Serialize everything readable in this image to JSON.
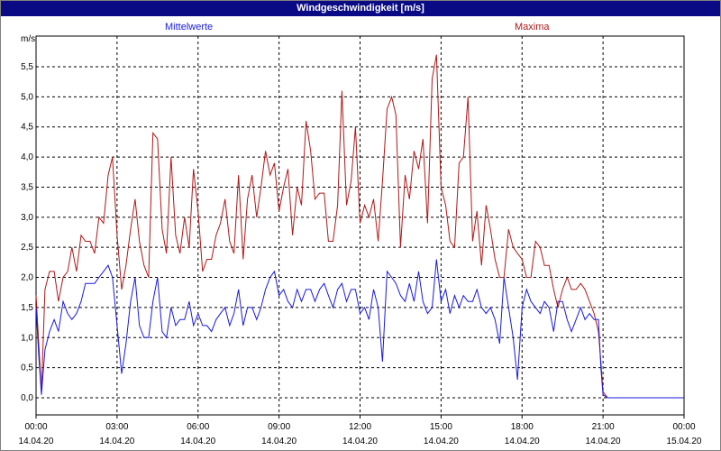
{
  "title": "Windgeschwindigkeit [m/s]",
  "legend": {
    "avg": "Mittelwerte",
    "max": "Maxima"
  },
  "colors": {
    "titlebar": "#0a0a84",
    "avg": "#1a1adf",
    "max": "#b01818",
    "grid": "#000000"
  },
  "chart_data": {
    "type": "line",
    "ylabel": "m/s",
    "ylim": [
      0,
      6
    ],
    "grid": true,
    "legend_placement": "top",
    "y_ticks": [
      "0,0",
      "0,5",
      "1,0",
      "1,5",
      "2,0",
      "2,5",
      "3,0",
      "3,5",
      "4,0",
      "4,5",
      "5,0",
      "5,5"
    ],
    "x_ticks": [
      {
        "time": "00:00",
        "date": "14.04.20"
      },
      {
        "time": "03:00",
        "date": "14.04.20"
      },
      {
        "time": "06:00",
        "date": "14.04.20"
      },
      {
        "time": "09:00",
        "date": "14.04.20"
      },
      {
        "time": "12:00",
        "date": "14.04.20"
      },
      {
        "time": "15:00",
        "date": "14.04.20"
      },
      {
        "time": "18:00",
        "date": "14.04.20"
      },
      {
        "time": "21:00",
        "date": "14.04.20"
      },
      {
        "time": "00:00",
        "date": "15.04.20"
      }
    ],
    "x_unit": "hours since 14.04.20 00:00",
    "xlim": [
      0,
      24
    ],
    "series": [
      {
        "name": "Maxima",
        "color": "#b01818",
        "points": [
          [
            0,
            1.7
          ],
          [
            0.1,
            0.9
          ],
          [
            0.2,
            0.1
          ],
          [
            0.33,
            1.8
          ],
          [
            0.5,
            2.1
          ],
          [
            0.67,
            2.1
          ],
          [
            0.83,
            1.6
          ],
          [
            1.0,
            2.0
          ],
          [
            1.17,
            2.1
          ],
          [
            1.33,
            2.5
          ],
          [
            1.5,
            2.1
          ],
          [
            1.67,
            2.7
          ],
          [
            1.83,
            2.6
          ],
          [
            2.0,
            2.6
          ],
          [
            2.17,
            2.4
          ],
          [
            2.33,
            3.0
          ],
          [
            2.5,
            2.9
          ],
          [
            2.67,
            3.7
          ],
          [
            2.83,
            4.0
          ],
          [
            3.0,
            2.7
          ],
          [
            3.17,
            1.8
          ],
          [
            3.33,
            2.2
          ],
          [
            3.5,
            2.8
          ],
          [
            3.67,
            3.3
          ],
          [
            3.83,
            2.6
          ],
          [
            4.0,
            2.2
          ],
          [
            4.17,
            2.0
          ],
          [
            4.33,
            4.4
          ],
          [
            4.5,
            4.3
          ],
          [
            4.67,
            2.8
          ],
          [
            4.83,
            2.4
          ],
          [
            5.0,
            4.0
          ],
          [
            5.17,
            2.7
          ],
          [
            5.33,
            2.4
          ],
          [
            5.5,
            3.0
          ],
          [
            5.67,
            2.5
          ],
          [
            5.83,
            3.8
          ],
          [
            6.0,
            3.1
          ],
          [
            6.17,
            2.1
          ],
          [
            6.33,
            2.3
          ],
          [
            6.5,
            2.3
          ],
          [
            6.67,
            2.7
          ],
          [
            6.83,
            2.9
          ],
          [
            7.0,
            3.3
          ],
          [
            7.17,
            2.6
          ],
          [
            7.33,
            2.4
          ],
          [
            7.5,
            3.7
          ],
          [
            7.67,
            2.3
          ],
          [
            7.83,
            3.3
          ],
          [
            8.0,
            3.7
          ],
          [
            8.17,
            3.0
          ],
          [
            8.33,
            3.5
          ],
          [
            8.5,
            4.1
          ],
          [
            8.67,
            3.7
          ],
          [
            8.83,
            3.9
          ],
          [
            9.0,
            3.1
          ],
          [
            9.17,
            3.5
          ],
          [
            9.33,
            3.8
          ],
          [
            9.5,
            2.7
          ],
          [
            9.67,
            3.5
          ],
          [
            9.83,
            3.2
          ],
          [
            10.0,
            4.6
          ],
          [
            10.17,
            4.1
          ],
          [
            10.33,
            3.3
          ],
          [
            10.5,
            3.4
          ],
          [
            10.67,
            3.4
          ],
          [
            10.83,
            2.6
          ],
          [
            11.0,
            2.6
          ],
          [
            11.17,
            3.2
          ],
          [
            11.33,
            5.1
          ],
          [
            11.5,
            3.2
          ],
          [
            11.67,
            3.6
          ],
          [
            11.83,
            4.5
          ],
          [
            12.0,
            2.9
          ],
          [
            12.17,
            3.2
          ],
          [
            12.33,
            3.0
          ],
          [
            12.5,
            3.3
          ],
          [
            12.67,
            2.6
          ],
          [
            12.83,
            3.6
          ],
          [
            13.0,
            4.8
          ],
          [
            13.17,
            5.0
          ],
          [
            13.33,
            4.7
          ],
          [
            13.5,
            2.5
          ],
          [
            13.67,
            3.7
          ],
          [
            13.83,
            3.3
          ],
          [
            14.0,
            4.1
          ],
          [
            14.17,
            3.8
          ],
          [
            14.33,
            4.3
          ],
          [
            14.5,
            2.9
          ],
          [
            14.67,
            5.3
          ],
          [
            14.83,
            5.7
          ],
          [
            15.0,
            3.5
          ],
          [
            15.17,
            3.2
          ],
          [
            15.33,
            2.6
          ],
          [
            15.5,
            2.5
          ],
          [
            15.67,
            3.9
          ],
          [
            15.83,
            4.0
          ],
          [
            16.0,
            5.0
          ],
          [
            16.17,
            2.6
          ],
          [
            16.33,
            3.1
          ],
          [
            16.5,
            2.2
          ],
          [
            16.67,
            3.2
          ],
          [
            16.83,
            2.8
          ],
          [
            17.0,
            2.3
          ],
          [
            17.17,
            2.0
          ],
          [
            17.33,
            2.0
          ],
          [
            17.5,
            2.8
          ],
          [
            17.67,
            2.5
          ],
          [
            17.83,
            2.4
          ],
          [
            18.0,
            2.3
          ],
          [
            18.17,
            2.0
          ],
          [
            18.33,
            2.0
          ],
          [
            18.5,
            2.6
          ],
          [
            18.67,
            2.5
          ],
          [
            18.83,
            2.2
          ],
          [
            19.0,
            2.2
          ],
          [
            19.17,
            1.8
          ],
          [
            19.33,
            1.5
          ],
          [
            19.5,
            1.8
          ],
          [
            19.67,
            2.0
          ],
          [
            19.83,
            1.8
          ],
          [
            20.0,
            1.8
          ],
          [
            20.17,
            1.9
          ],
          [
            20.33,
            1.8
          ],
          [
            20.5,
            1.6
          ],
          [
            20.67,
            1.4
          ],
          [
            20.83,
            1.1
          ],
          [
            20.92,
            0.6
          ],
          [
            21.0,
            0.1
          ],
          [
            21.17,
            0.0
          ],
          [
            24,
            0.0
          ]
        ]
      },
      {
        "name": "Mittelwerte",
        "color": "#1a1adf",
        "points": [
          [
            0,
            1.5
          ],
          [
            0.1,
            0.7
          ],
          [
            0.2,
            0.05
          ],
          [
            0.33,
            0.8
          ],
          [
            0.5,
            1.1
          ],
          [
            0.67,
            1.3
          ],
          [
            0.83,
            1.1
          ],
          [
            1.0,
            1.6
          ],
          [
            1.17,
            1.4
          ],
          [
            1.33,
            1.3
          ],
          [
            1.5,
            1.4
          ],
          [
            1.67,
            1.6
          ],
          [
            1.83,
            1.9
          ],
          [
            2.0,
            1.9
          ],
          [
            2.17,
            1.9
          ],
          [
            2.33,
            2.0
          ],
          [
            2.5,
            2.1
          ],
          [
            2.67,
            2.2
          ],
          [
            2.83,
            2.0
          ],
          [
            3.0,
            1.2
          ],
          [
            3.17,
            0.4
          ],
          [
            3.33,
            0.9
          ],
          [
            3.5,
            1.6
          ],
          [
            3.67,
            2.0
          ],
          [
            3.83,
            1.2
          ],
          [
            4.0,
            1.0
          ],
          [
            4.17,
            1.0
          ],
          [
            4.33,
            1.6
          ],
          [
            4.5,
            2.0
          ],
          [
            4.67,
            1.1
          ],
          [
            4.83,
            1.0
          ],
          [
            5.0,
            1.5
          ],
          [
            5.17,
            1.2
          ],
          [
            5.33,
            1.3
          ],
          [
            5.5,
            1.3
          ],
          [
            5.67,
            1.6
          ],
          [
            5.83,
            1.2
          ],
          [
            6.0,
            1.4
          ],
          [
            6.17,
            1.2
          ],
          [
            6.33,
            1.2
          ],
          [
            6.5,
            1.1
          ],
          [
            6.67,
            1.3
          ],
          [
            6.83,
            1.4
          ],
          [
            7.0,
            1.5
          ],
          [
            7.17,
            1.2
          ],
          [
            7.33,
            1.4
          ],
          [
            7.5,
            1.8
          ],
          [
            7.67,
            1.2
          ],
          [
            7.83,
            1.5
          ],
          [
            8.0,
            1.5
          ],
          [
            8.17,
            1.3
          ],
          [
            8.33,
            1.5
          ],
          [
            8.5,
            1.8
          ],
          [
            8.67,
            2.0
          ],
          [
            8.83,
            2.1
          ],
          [
            9.0,
            1.7
          ],
          [
            9.17,
            1.8
          ],
          [
            9.33,
            1.6
          ],
          [
            9.5,
            1.5
          ],
          [
            9.67,
            1.8
          ],
          [
            9.83,
            1.6
          ],
          [
            10.0,
            1.8
          ],
          [
            10.17,
            1.8
          ],
          [
            10.33,
            1.6
          ],
          [
            10.5,
            1.8
          ],
          [
            10.67,
            1.9
          ],
          [
            10.83,
            1.7
          ],
          [
            11.0,
            1.5
          ],
          [
            11.17,
            1.8
          ],
          [
            11.33,
            1.9
          ],
          [
            11.5,
            1.6
          ],
          [
            11.67,
            1.8
          ],
          [
            11.83,
            1.8
          ],
          [
            12.0,
            1.4
          ],
          [
            12.17,
            1.5
          ],
          [
            12.33,
            1.3
          ],
          [
            12.5,
            1.8
          ],
          [
            12.67,
            1.5
          ],
          [
            12.83,
            0.6
          ],
          [
            13.0,
            2.1
          ],
          [
            13.17,
            2.0
          ],
          [
            13.33,
            1.9
          ],
          [
            13.5,
            1.7
          ],
          [
            13.67,
            1.6
          ],
          [
            13.83,
            1.9
          ],
          [
            14.0,
            1.6
          ],
          [
            14.17,
            2.1
          ],
          [
            14.33,
            1.6
          ],
          [
            14.5,
            1.4
          ],
          [
            14.67,
            1.5
          ],
          [
            14.83,
            2.3
          ],
          [
            15.0,
            1.6
          ],
          [
            15.17,
            1.8
          ],
          [
            15.33,
            1.4
          ],
          [
            15.5,
            1.7
          ],
          [
            15.67,
            1.5
          ],
          [
            15.83,
            1.7
          ],
          [
            16.0,
            1.6
          ],
          [
            16.17,
            1.6
          ],
          [
            16.33,
            1.8
          ],
          [
            16.5,
            1.5
          ],
          [
            16.67,
            1.4
          ],
          [
            16.83,
            1.5
          ],
          [
            17.0,
            1.3
          ],
          [
            17.17,
            0.9
          ],
          [
            17.33,
            2.0
          ],
          [
            17.5,
            1.5
          ],
          [
            17.67,
            1.0
          ],
          [
            17.83,
            0.3
          ],
          [
            18.0,
            1.5
          ],
          [
            18.17,
            1.8
          ],
          [
            18.33,
            1.6
          ],
          [
            18.5,
            1.5
          ],
          [
            18.67,
            1.4
          ],
          [
            18.83,
            1.6
          ],
          [
            19.0,
            1.5
          ],
          [
            19.17,
            1.1
          ],
          [
            19.33,
            1.6
          ],
          [
            19.5,
            1.6
          ],
          [
            19.67,
            1.3
          ],
          [
            19.83,
            1.1
          ],
          [
            20.0,
            1.3
          ],
          [
            20.17,
            1.5
          ],
          [
            20.33,
            1.3
          ],
          [
            20.5,
            1.4
          ],
          [
            20.67,
            1.3
          ],
          [
            20.83,
            1.3
          ],
          [
            20.92,
            0.5
          ],
          [
            21.0,
            0.05
          ],
          [
            21.17,
            0.0
          ],
          [
            24,
            0.0
          ]
        ]
      }
    ]
  }
}
